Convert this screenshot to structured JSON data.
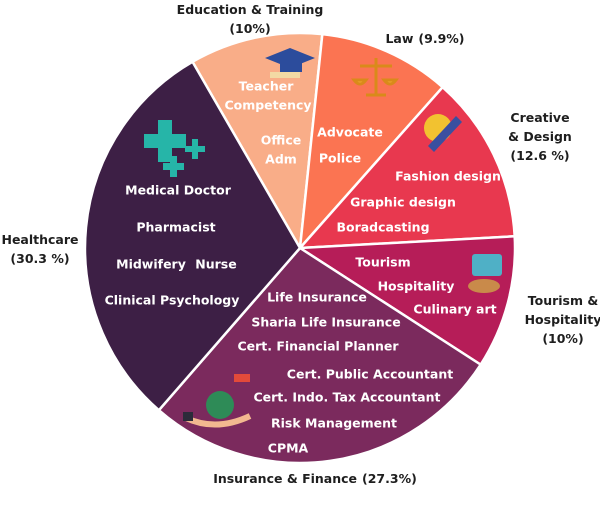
{
  "chart_data": {
    "type": "pie",
    "categories": [
      "Education & Training",
      "Law",
      "Creative & Design",
      "Tourism & Hospitality",
      "Insurance & Finance",
      "Healthcare"
    ],
    "values": [
      10,
      9.9,
      12.6,
      10,
      27.3,
      30.3
    ],
    "value_labels": [
      "(10%)",
      "(9.9%)",
      "(12.6 %)",
      "(10%)",
      "(27.3%)",
      "(30.3 %)"
    ],
    "colors": [
      "#f9ad88",
      "#fb7452",
      "#e8384f",
      "#b61d58",
      "#7b2a5d",
      "#3d1f45"
    ],
    "slice_items": [
      [
        "Teacher",
        "Competency",
        "Office",
        "Adm"
      ],
      [
        "Advocate",
        "Police"
      ],
      [
        "Fashion design",
        "Graphic design",
        "Boradcasting"
      ],
      [
        "Tourism",
        "Hospitality",
        "Culinary art"
      ],
      [
        "Life Insurance",
        "Sharia Life Insurance",
        "Cert. Financial Planner",
        "Cert. Public Accountant",
        "Cert. Indo. Tax Accountant",
        "Risk Management",
        "CPMA"
      ],
      [
        "Medical Doctor",
        "Pharmacist",
        "Midwifery",
        "Nurse",
        "Clinical Psychology"
      ]
    ]
  }
}
